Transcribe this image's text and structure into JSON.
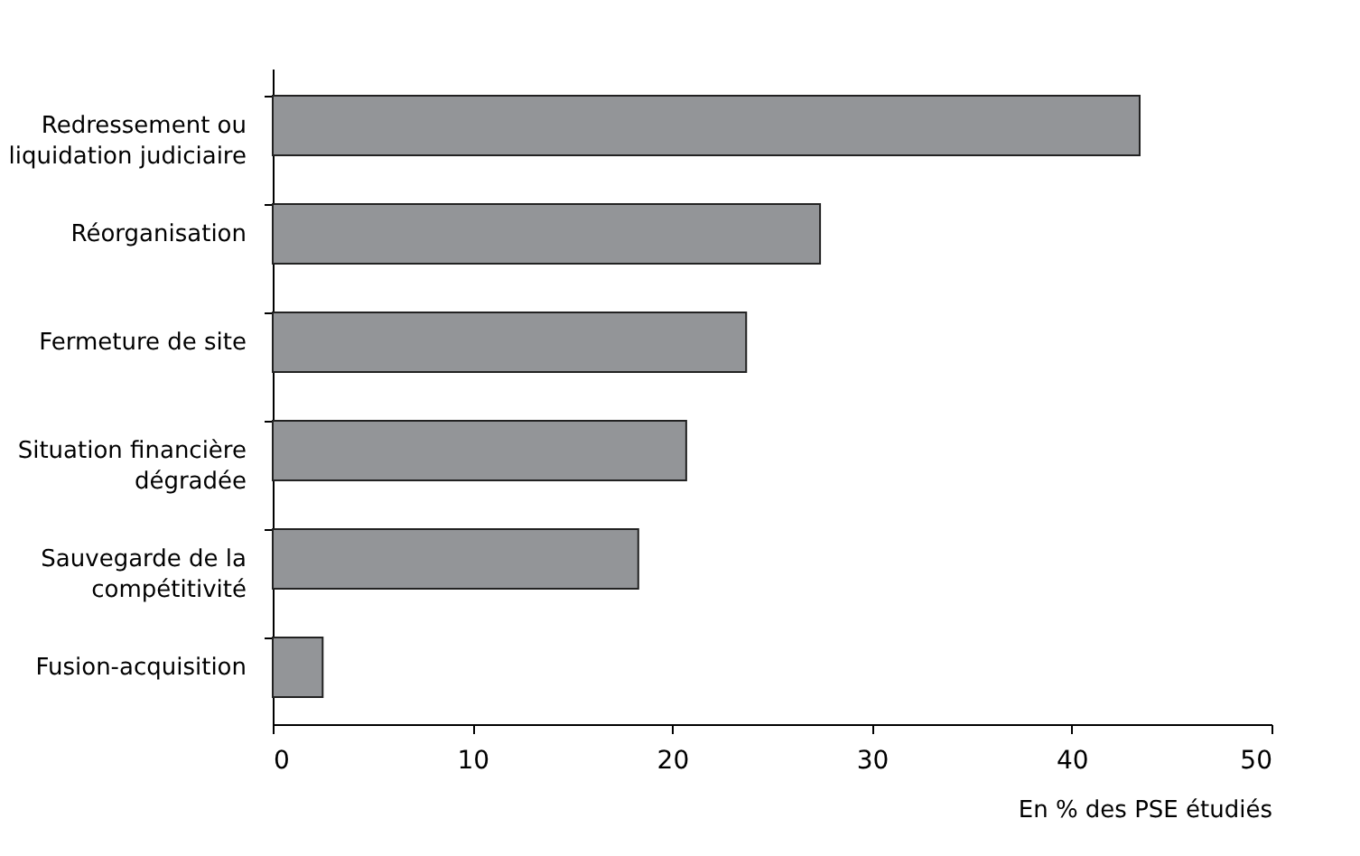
{
  "chart_data": {
    "type": "bar",
    "orientation": "horizontal",
    "xlabel": "En % des PSE étudiés",
    "categories": [
      "Redressement ou liquidation judiciaire",
      "Réorganisation",
      "Fermeture de site",
      "Situation financière dégradée",
      "Sauvegarde de la compétitivité",
      "Fusion-acquisition"
    ],
    "values": [
      43.4,
      27.4,
      23.7,
      20.7,
      18.3,
      2.5
    ],
    "color": "#939598",
    "xlim": [
      0,
      50
    ],
    "xticks": [
      0,
      10,
      20,
      30,
      40,
      50
    ],
    "grid": false
  }
}
